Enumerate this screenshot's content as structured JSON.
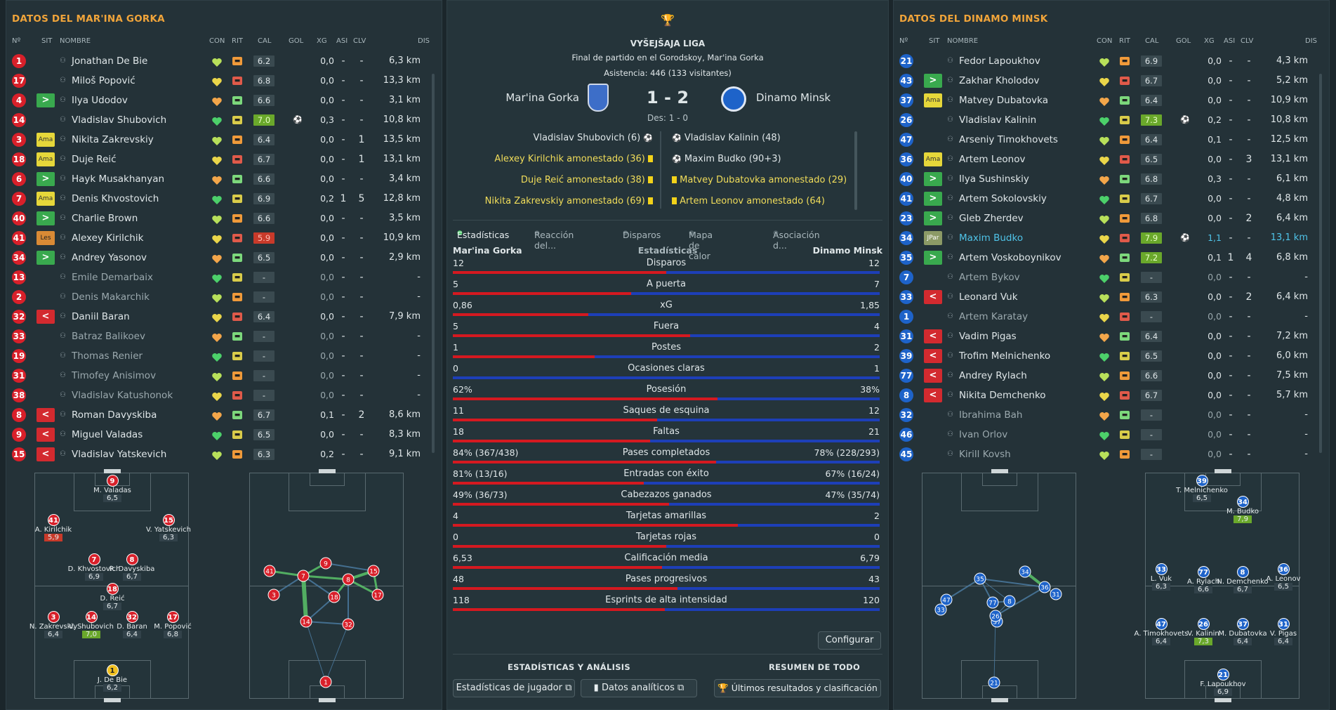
{
  "left": {
    "title": "DATOS DEL MAR'INA GORKA",
    "columns": {
      "num": "Nº",
      "sit": "SIT",
      "name": "NOMBRE",
      "con": "CON",
      "rit": "RIT",
      "cal": "CAL",
      "gol": "GOL",
      "xg": "XG",
      "asi": "ASI",
      "clv": "CLV",
      "dis": "DIS"
    },
    "players": [
      {
        "num": "1",
        "sit": "",
        "name": "Jonathan De Bie",
        "cal": "6.2",
        "xg": "0,0",
        "asi": "-",
        "clv": "-",
        "dis": "6,3 km"
      },
      {
        "num": "17",
        "sit": "",
        "name": "Miloš Popović",
        "cal": "6.8",
        "xg": "0,0",
        "asi": "-",
        "clv": "-",
        "dis": "13,3 km"
      },
      {
        "num": "4",
        "sit": ">",
        "name": "Ilya Udodov",
        "cal": "6.6",
        "xg": "0,0",
        "asi": "-",
        "clv": "-",
        "dis": "3,1 km"
      },
      {
        "num": "14",
        "sit": "",
        "name": "Vladislav Shubovich",
        "cal": "7.0",
        "xg": "0,3",
        "asi": "-",
        "clv": "-",
        "dis": "10,8 km"
      },
      {
        "num": "3",
        "sit": "Ama",
        "name": "Nikita Zakrevskiy",
        "cal": "6.4",
        "xg": "0,0",
        "asi": "-",
        "clv": "1",
        "dis": "13,5 km"
      },
      {
        "num": "18",
        "sit": "Ama",
        "name": "Duje Reić",
        "cal": "6.7",
        "xg": "0,0",
        "asi": "-",
        "clv": "1",
        "dis": "13,1 km"
      },
      {
        "num": "6",
        "sit": ">",
        "name": "Hayk Musakhanyan",
        "cal": "6.6",
        "xg": "0,0",
        "asi": "-",
        "clv": "-",
        "dis": "3,4 km"
      },
      {
        "num": "7",
        "sit": "Ama",
        "name": "Denis Khvostovich",
        "cal": "6.9",
        "xg": "0,2",
        "asi": "1",
        "clv": "5",
        "dis": "12,8 km"
      },
      {
        "num": "40",
        "sit": ">",
        "name": "Charlie Brown",
        "cal": "6.6",
        "xg": "0,0",
        "asi": "-",
        "clv": "-",
        "dis": "3,5 km"
      },
      {
        "num": "41",
        "sit": "Les",
        "name": "Alexey Kirilchik",
        "cal": "5.9",
        "xg": "0,0",
        "asi": "-",
        "clv": "-",
        "dis": "10,9 km"
      },
      {
        "num": "34",
        "sit": ">",
        "name": "Andrey Yasonov",
        "cal": "6.5",
        "xg": "0,0",
        "asi": "-",
        "clv": "-",
        "dis": "2,9 km"
      },
      {
        "num": "13",
        "sit": "",
        "name": "Emile Demarbaix",
        "cal": "-",
        "xg": "0,0",
        "asi": "-",
        "clv": "-",
        "dis": "-"
      },
      {
        "num": "2",
        "sit": "",
        "name": "Denis Makarchik",
        "cal": "-",
        "xg": "0,0",
        "asi": "-",
        "clv": "-",
        "dis": "-"
      },
      {
        "num": "32",
        "sit": "<",
        "name": "Daniil Baran",
        "cal": "6.4",
        "xg": "0,0",
        "asi": "-",
        "clv": "-",
        "dis": "7,9 km"
      },
      {
        "num": "33",
        "sit": "",
        "name": "Batraz Balikoev",
        "cal": "-",
        "xg": "0,0",
        "asi": "-",
        "clv": "-",
        "dis": "-"
      },
      {
        "num": "19",
        "sit": "",
        "name": "Thomas Renier",
        "cal": "-",
        "xg": "0,0",
        "asi": "-",
        "clv": "-",
        "dis": "-"
      },
      {
        "num": "31",
        "sit": "",
        "name": "Timofey Anisimov",
        "cal": "-",
        "xg": "0,0",
        "asi": "-",
        "clv": "-",
        "dis": "-"
      },
      {
        "num": "38",
        "sit": "",
        "name": "Vladislav Katushonok",
        "cal": "-",
        "xg": "0,0",
        "asi": "-",
        "clv": "-",
        "dis": "-"
      },
      {
        "num": "8",
        "sit": "<",
        "name": "Roman Davyskiba",
        "cal": "6.7",
        "xg": "0,1",
        "asi": "-",
        "clv": "2",
        "dis": "8,6 km"
      },
      {
        "num": "9",
        "sit": "<",
        "name": "Miguel Valadas",
        "cal": "6.5",
        "xg": "0,0",
        "asi": "-",
        "clv": "-",
        "dis": "8,3 km"
      },
      {
        "num": "15",
        "sit": "<",
        "name": "Vladislav Yatskevich",
        "cal": "6.3",
        "xg": "0,2",
        "asi": "-",
        "clv": "-",
        "dis": "9,1 km"
      }
    ],
    "formation": [
      {
        "num": "9",
        "name": "M. Valadas",
        "rt": "6,5"
      },
      {
        "num": "41",
        "name": "A. Kirilchik",
        "rt": "5,9"
      },
      {
        "num": "15",
        "name": "V. Yatskevich",
        "rt": "6,3"
      },
      {
        "num": "7",
        "name": "D. Khvostovich",
        "rt": "6,9"
      },
      {
        "num": "8",
        "name": "R. Davyskiba",
        "rt": "6,7"
      },
      {
        "num": "18",
        "name": "D. Reić",
        "rt": "6,7"
      },
      {
        "num": "3",
        "name": "N. Zakrevskiy",
        "rt": "6,4"
      },
      {
        "num": "14",
        "name": "V. Shubovich",
        "rt": "7,0"
      },
      {
        "num": "32",
        "name": "D. Baran",
        "rt": "6,4"
      },
      {
        "num": "17",
        "name": "M. Popović",
        "rt": "6,8"
      },
      {
        "num": "1",
        "name": "J. De Bie",
        "rt": "6,2"
      }
    ]
  },
  "right": {
    "title": "DATOS DEL DINAMO MINSK",
    "players": [
      {
        "num": "21",
        "sit": "",
        "name": "Fedor Lapoukhov",
        "cal": "6.9",
        "xg": "0,0",
        "asi": "-",
        "clv": "-",
        "dis": "4,3 km"
      },
      {
        "num": "43",
        "sit": ">",
        "name": "Zakhar Kholodov",
        "cal": "6.7",
        "xg": "0,0",
        "asi": "-",
        "clv": "-",
        "dis": "5,2 km"
      },
      {
        "num": "37",
        "sit": "Ama",
        "name": "Matvey Dubatovka",
        "cal": "6.4",
        "xg": "0,0",
        "asi": "-",
        "clv": "-",
        "dis": "10,9 km"
      },
      {
        "num": "26",
        "sit": "",
        "name": "Vladislav Kalinin",
        "cal": "7.3",
        "xg": "0,2",
        "asi": "-",
        "clv": "-",
        "dis": "10,8 km"
      },
      {
        "num": "47",
        "sit": "",
        "name": "Arseniy Timokhovets",
        "cal": "6.4",
        "xg": "0,1",
        "asi": "-",
        "clv": "-",
        "dis": "12,5 km"
      },
      {
        "num": "36",
        "sit": "Ama",
        "name": "Artem Leonov",
        "cal": "6.5",
        "xg": "0,0",
        "asi": "-",
        "clv": "3",
        "dis": "13,1 km"
      },
      {
        "num": "40",
        "sit": ">",
        "name": "Ilya Sushinskiy",
        "cal": "6.8",
        "xg": "0,3",
        "asi": "-",
        "clv": "-",
        "dis": "6,1 km"
      },
      {
        "num": "41",
        "sit": ">",
        "name": "Artem Sokolovskiy",
        "cal": "6.7",
        "xg": "0,0",
        "asi": "-",
        "clv": "-",
        "dis": "4,8 km"
      },
      {
        "num": "23",
        "sit": ">",
        "name": "Gleb Zherdev",
        "cal": "6.8",
        "xg": "0,0",
        "asi": "-",
        "clv": "2",
        "dis": "6,4 km"
      },
      {
        "num": "34",
        "sit": "JPar",
        "name": "Maxim Budko",
        "cal": "7.9",
        "xg": "1,1",
        "asi": "-",
        "clv": "-",
        "dis": "13,1 km"
      },
      {
        "num": "35",
        "sit": ">",
        "name": "Artem Voskoboynikov",
        "cal": "7.2",
        "xg": "0,1",
        "asi": "1",
        "clv": "4",
        "dis": "6,8 km"
      },
      {
        "num": "7",
        "sit": "",
        "name": "Artem Bykov",
        "cal": "-",
        "xg": "0,0",
        "asi": "-",
        "clv": "-",
        "dis": "-"
      },
      {
        "num": "33",
        "sit": "<",
        "name": "Leonard Vuk",
        "cal": "6.3",
        "xg": "0,0",
        "asi": "-",
        "clv": "2",
        "dis": "6,4 km"
      },
      {
        "num": "1",
        "sit": "",
        "name": "Artem Karatay",
        "cal": "-",
        "xg": "0,0",
        "asi": "-",
        "clv": "-",
        "dis": "-"
      },
      {
        "num": "31",
        "sit": "<",
        "name": "Vadim Pigas",
        "cal": "6.4",
        "xg": "0,0",
        "asi": "-",
        "clv": "-",
        "dis": "7,2 km"
      },
      {
        "num": "39",
        "sit": "<",
        "name": "Trofim Melnichenko",
        "cal": "6.5",
        "xg": "0,0",
        "asi": "-",
        "clv": "-",
        "dis": "6,0 km"
      },
      {
        "num": "77",
        "sit": "<",
        "name": "Andrey Rylach",
        "cal": "6.6",
        "xg": "0,0",
        "asi": "-",
        "clv": "-",
        "dis": "7,5 km"
      },
      {
        "num": "8",
        "sit": "<",
        "name": "Nikita Demchenko",
        "cal": "6.7",
        "xg": "0,0",
        "asi": "-",
        "clv": "-",
        "dis": "5,7 km"
      },
      {
        "num": "32",
        "sit": "",
        "name": "Ibrahima Bah",
        "cal": "-",
        "xg": "0,0",
        "asi": "-",
        "clv": "-",
        "dis": "-"
      },
      {
        "num": "46",
        "sit": "",
        "name": "Ivan Orlov",
        "cal": "-",
        "xg": "0,0",
        "asi": "-",
        "clv": "-",
        "dis": "-"
      },
      {
        "num": "45",
        "sit": "",
        "name": "Kirill Kovsh",
        "cal": "-",
        "xg": "0,0",
        "asi": "-",
        "clv": "-",
        "dis": "-"
      }
    ],
    "formation": [
      {
        "num": "39",
        "name": "T. Melnichenko",
        "rt": "6,5"
      },
      {
        "num": "34",
        "name": "M. Budko",
        "rt": "7,9"
      },
      {
        "num": "33",
        "name": "L. Vuk",
        "rt": "6,3"
      },
      {
        "num": "77",
        "name": "A. Rylach",
        "rt": "6,6"
      },
      {
        "num": "8",
        "name": "N. Demchenko",
        "rt": "6,7"
      },
      {
        "num": "36",
        "name": "A. Leonov",
        "rt": "6,5"
      },
      {
        "num": "47",
        "name": "A. Timokhovets",
        "rt": "6,4"
      },
      {
        "num": "26",
        "name": "V. Kalinin",
        "rt": "7,3"
      },
      {
        "num": "37",
        "name": "M. Dubatovka",
        "rt": "6,4"
      },
      {
        "num": "31",
        "name": "V. Pigas",
        "rt": "6,4"
      },
      {
        "num": "21",
        "name": "F. Lapoukhov",
        "rt": "6,9"
      }
    ]
  },
  "match": {
    "league": "VYŠEJŠAJA LIGA",
    "subtitle": "Final de partido en el Gorodskoy, Mar'ina Gorka",
    "attendance": "Asistencia: 446 (133 visitantes)",
    "home": "Mar'ina Gorka",
    "away": "Dinamo Minsk",
    "score": "1 - 2",
    "halftime": "Des: 1 - 0",
    "home_events": [
      {
        "text": "Vladislav Shubovich (6)",
        "type": "goal"
      },
      {
        "text": "Alexey Kirilchik amonestado (36)",
        "type": "yellow"
      },
      {
        "text": "Duje Reić amonestado (38)",
        "type": "yellow"
      },
      {
        "text": "Nikita Zakrevskiy amonestado (69)",
        "type": "yellow"
      }
    ],
    "away_events": [
      {
        "text": "Vladislav Kalinin (48)",
        "type": "goal"
      },
      {
        "text": "Maxim Budko (90+3)",
        "type": "goal"
      },
      {
        "text": "Matvey Dubatovka amonestado (29)",
        "type": "yellow"
      },
      {
        "text": "Artem Leonov amonestado (64)",
        "type": "yellow"
      }
    ]
  },
  "tabs": [
    "Estadísticas",
    "Reacción del...",
    "Disparos",
    "Mapa de calor",
    "Asociación d..."
  ],
  "stats_header": {
    "home": "Mar'ina Gorka",
    "title": "Estadísticas",
    "away": "Dinamo Minsk"
  },
  "stats": [
    {
      "label": "Disparos",
      "home": "12",
      "away": "12",
      "share": 0.5
    },
    {
      "label": "A puerta",
      "home": "5",
      "away": "7",
      "share": 0.417
    },
    {
      "label": "xG",
      "home": "0,86",
      "away": "1,85",
      "share": 0.317
    },
    {
      "label": "Fuera",
      "home": "5",
      "away": "4",
      "share": 0.556
    },
    {
      "label": "Postes",
      "home": "1",
      "away": "2",
      "share": 0.333
    },
    {
      "label": "Ocasiones claras",
      "home": "0",
      "away": "1",
      "share": 0
    },
    {
      "label": "Posesión",
      "home": "62%",
      "away": "38%",
      "share": 0.62
    },
    {
      "label": "Saques de esquina",
      "home": "11",
      "away": "12",
      "share": 0.478
    },
    {
      "label": "Faltas",
      "home": "18",
      "away": "21",
      "share": 0.462
    },
    {
      "label": "Pases completados",
      "home": "84% (367/438)",
      "away": "78% (228/293)",
      "share": 0.617
    },
    {
      "label": "Entradas con éxito",
      "home": "81% (13/16)",
      "away": "67% (16/24)",
      "share": 0.448
    },
    {
      "label": "Cabezazos ganados",
      "home": "49% (36/73)",
      "away": "47% (35/74)",
      "share": 0.507
    },
    {
      "label": "Tarjetas amarillas",
      "home": "4",
      "away": "2",
      "share": 0.667
    },
    {
      "label": "Tarjetas rojas",
      "home": "0",
      "away": "0",
      "share": 0.5
    },
    {
      "label": "Calificación media",
      "home": "6,53",
      "away": "6,79",
      "share": 0.49
    },
    {
      "label": "Pases progresivos",
      "home": "48",
      "away": "43",
      "share": 0.527
    },
    {
      "label": "Esprints de alta intensidad",
      "home": "118",
      "away": "120",
      "share": 0.496
    }
  ],
  "buttons": {
    "configure": "Configurar",
    "section_left": "ESTADÍSTICAS Y ANÁLISIS",
    "section_right": "RESUMEN DE TODO",
    "player_stats": "Estadísticas de jugador",
    "analytics": "Datos analíticos",
    "results": "Últimos resultados y clasificación"
  },
  "colors": {
    "home": "#d8202a",
    "away": "#1e63c9",
    "accent": "#f0a43a",
    "good": "#6aa82b"
  }
}
